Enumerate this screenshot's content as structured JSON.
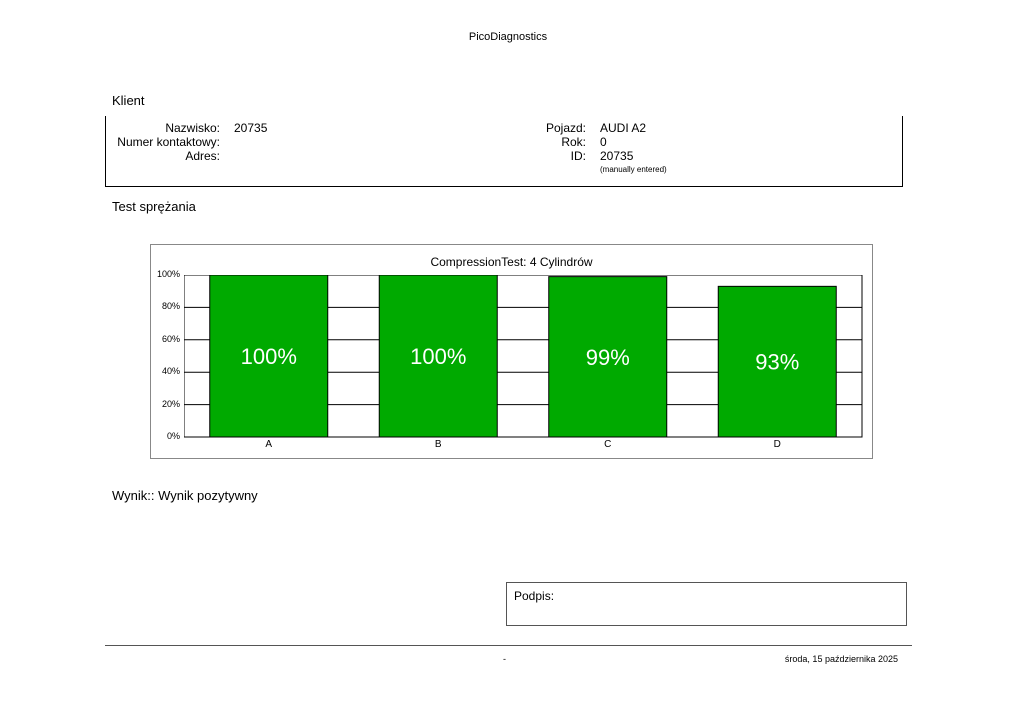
{
  "header": {
    "title": "PicoDiagnostics"
  },
  "client": {
    "section_title": "Klient",
    "name_label": "Nazwisko:",
    "name_value": "20735",
    "contact_label": "Numer kontaktowy:",
    "address_label": "Adres:",
    "vehicle_label": "Pojazd:",
    "vehicle_value": "AUDI A2",
    "year_label": "Rok:",
    "year_value": "0",
    "id_label": "ID:",
    "id_value": "20735",
    "id_note": "(manually entered)"
  },
  "test": {
    "section_title": "Test sprężania"
  },
  "chart_data": {
    "type": "bar",
    "title": "CompressionTest: 4 Cylindrów",
    "categories": [
      "A",
      "B",
      "C",
      "D"
    ],
    "values": [
      100,
      100,
      99,
      93
    ],
    "data_labels": [
      "100%",
      "100%",
      "99%",
      "93%"
    ],
    "y_ticks": [
      "0%",
      "20%",
      "40%",
      "60%",
      "80%",
      "100%"
    ],
    "ylim": [
      0,
      100
    ],
    "grid": true,
    "bar_color": "#00aa00",
    "label_color": "#ffffff"
  },
  "result": {
    "text": "Wynik:: Wynik pozytywny"
  },
  "signature": {
    "label": "Podpis:"
  },
  "footer": {
    "center": "-",
    "date": "środa, 15 października 2025"
  }
}
